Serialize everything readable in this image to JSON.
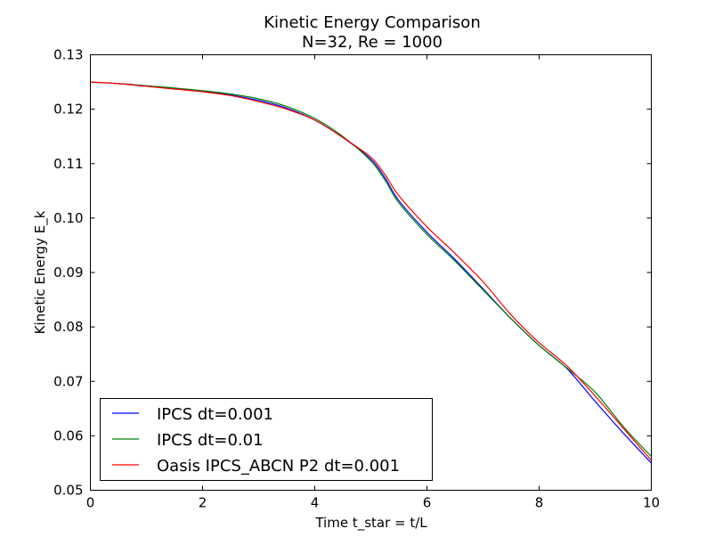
{
  "chart_data": {
    "type": "line",
    "title": "Kinetic Energy Comparison",
    "subtitle": "N=32, Re = 1000",
    "xlabel": "Time t_star = t/L",
    "ylabel": "Kinetic Energy E_k",
    "xlim": [
      0,
      10
    ],
    "ylim": [
      0.05,
      0.13
    ],
    "xticks": [
      0,
      2,
      4,
      6,
      8,
      10
    ],
    "xtick_labels": [
      "0",
      "2",
      "4",
      "6",
      "8",
      "10"
    ],
    "yticks": [
      0.05,
      0.06,
      0.07,
      0.08,
      0.09,
      0.1,
      0.11,
      0.12,
      0.13
    ],
    "ytick_labels": [
      "0.05",
      "0.06",
      "0.07",
      "0.08",
      "0.09",
      "0.10",
      "0.11",
      "0.12",
      "0.13"
    ],
    "grid": false,
    "legend_position": "bottom-left",
    "series": [
      {
        "name": "IPCS dt=0.001",
        "color": "#0000ff",
        "x": [
          0,
          0.5,
          1,
          1.5,
          2,
          2.5,
          3,
          3.5,
          4,
          4.5,
          5,
          5.25,
          5.5,
          6,
          6.5,
          7,
          7.5,
          8,
          8.5,
          9,
          9.5,
          10
        ],
        "y": [
          0.125,
          0.1247,
          0.1243,
          0.1238,
          0.1233,
          0.1226,
          0.1216,
          0.1202,
          0.118,
          0.1148,
          0.1108,
          0.1074,
          0.1032,
          0.0974,
          0.0924,
          0.087,
          0.0815,
          0.0766,
          0.0723,
          0.0663,
          0.0605,
          0.055
        ]
      },
      {
        "name": "IPCS dt=0.01",
        "color": "#008000",
        "x": [
          0,
          0.5,
          1,
          1.5,
          2,
          2.5,
          3,
          3.5,
          4,
          4.5,
          5,
          5.25,
          5.5,
          6,
          6.5,
          7,
          7.5,
          8,
          8.5,
          9,
          9.5,
          10
        ],
        "y": [
          0.125,
          0.1247,
          0.1243,
          0.1239,
          0.1234,
          0.1228,
          0.1219,
          0.1205,
          0.1183,
          0.115,
          0.1105,
          0.107,
          0.1028,
          0.097,
          0.0921,
          0.0868,
          0.0815,
          0.0766,
          0.0724,
          0.068,
          0.0617,
          0.0562
        ]
      },
      {
        "name": "Oasis IPCS_ABCN P2 dt=0.001",
        "color": "#ff0000",
        "x": [
          0,
          0.5,
          1,
          1.5,
          2,
          2.5,
          3,
          3.5,
          4,
          4.5,
          5,
          5.25,
          5.5,
          6,
          6.5,
          7,
          7.5,
          8,
          8.5,
          9,
          9.5,
          10
        ],
        "y": [
          0.125,
          0.1247,
          0.1242,
          0.1237,
          0.1232,
          0.1225,
          0.1214,
          0.12,
          0.118,
          0.1148,
          0.1112,
          0.108,
          0.1041,
          0.0984,
          0.0935,
          0.0883,
          0.0822,
          0.0771,
          0.0728,
          0.0673,
          0.0614,
          0.0555
        ]
      }
    ]
  }
}
